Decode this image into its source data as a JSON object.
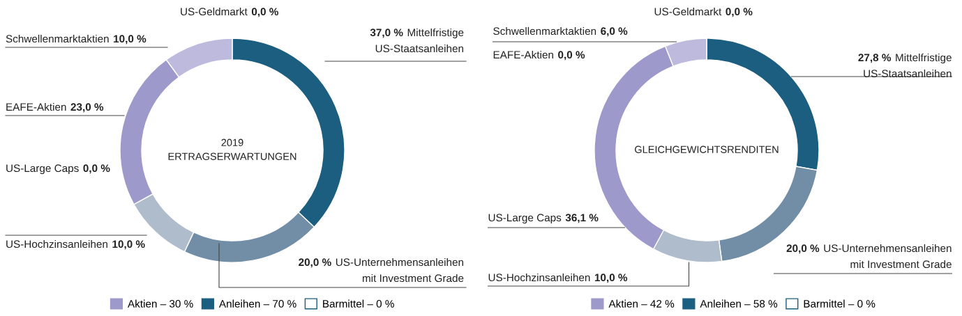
{
  "chart_data": [
    {
      "type": "donut",
      "title": "2019\nERTRAGSERWARTUNGEN",
      "categories": [
        "Mittelfristige\nUS-Staatsanleihen",
        "US-Unternehmensanleihen\nmit Investment Grade",
        "US-Hochzinsanleihen",
        "US-Large Caps",
        "EAFE-Aktien",
        "Schwellenmarktaktien",
        "US-Geldmarkt"
      ],
      "values": [
        37.0,
        20.0,
        10.0,
        0.0,
        23.0,
        10.0,
        0.0
      ],
      "value_labels": [
        "37,0 %",
        "20,0 %",
        "10,0 %",
        "0,0 %",
        "23,0 %",
        "10,0 %",
        "0,0 %"
      ],
      "colors": [
        "#1b5e80",
        "#728ea6",
        "#afbccb",
        "#9d99ca",
        "#9d99ca",
        "#bdbade",
        "#ffffff"
      ],
      "annotations": [
        "Aktien – 30 %",
        "Anleihen – 70 %",
        "Barmittel – 0 %"
      ]
    },
    {
      "type": "donut",
      "title": "GLEICHGEWICHTSRENDITEN",
      "categories": [
        "Mittelfristige\nUS-Staatsanleihen",
        "US-Unternehmensanleihen\nmit Investment Grade",
        "US-Hochzinsanleihen",
        "US-Large Caps",
        "EAFE-Aktien",
        "Schwellenmarktaktien",
        "US-Geldmarkt"
      ],
      "values": [
        27.8,
        20.0,
        10.0,
        36.1,
        0.0,
        6.0,
        0.0
      ],
      "value_labels": [
        "27,8 %",
        "20,0 %",
        "10,0 %",
        "36,1 %",
        "0,0 %",
        "6,0 %",
        "0,0 %"
      ],
      "colors": [
        "#1b5e80",
        "#728ea6",
        "#afbccb",
        "#9d99ca",
        "#9d99ca",
        "#bdbade",
        "#ffffff"
      ],
      "annotations": [
        "Aktien – 42 %",
        "Anleihen – 58 %",
        "Barmittel – 0 %"
      ]
    }
  ]
}
